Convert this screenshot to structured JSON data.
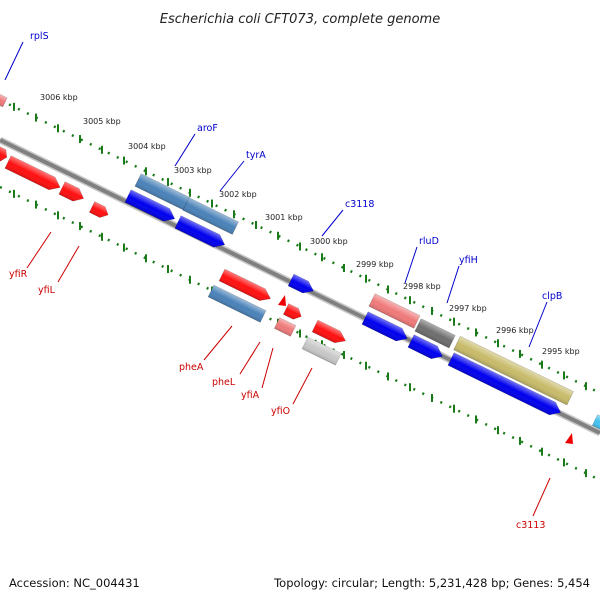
{
  "title": "Escherichia coli CFT073, complete genome",
  "accession": "Accession: NC_004431",
  "topology": "Topology: circular; Length: 5,231,428 bp; Genes: 5,454",
  "colors": {
    "forward_label": "#0000cc",
    "reverse_label": "#cc0000",
    "tick": "#1a7a1a",
    "backbone": "#808080"
  },
  "scale_labels": [
    "3006 kbp",
    "3005 kbp",
    "3004 kbp",
    "3003 kbp",
    "3002 kbp",
    "3001 kbp",
    "3000 kbp",
    "2999 kbp",
    "2998 kbp",
    "2997 kbp",
    "2996 kbp",
    "2995 kbp"
  ],
  "forward_genes": [
    "rplS",
    "aroF",
    "tyrA",
    "c3118",
    "rluD",
    "yfiH",
    "clpB"
  ],
  "reverse_genes": [
    "yfiR",
    "yfiL",
    "pheA",
    "pheL",
    "yfiA",
    "yfiO",
    "c3113"
  ]
}
